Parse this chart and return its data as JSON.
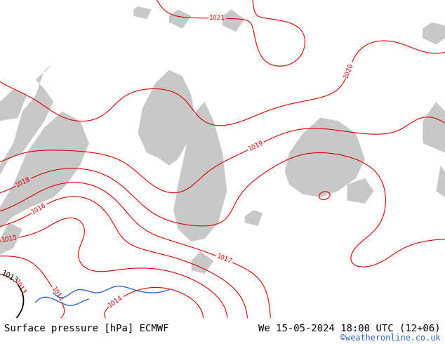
{
  "title_left": "Surface pressure [hPa] ECMWF",
  "title_right": "We 15-05-2024 18:00 UTC (12+06)",
  "credit": "©weatheronline.co.uk",
  "bg_color": "#aae05a",
  "gray_terrain": "#c8c8c8",
  "contour_color_red": "#dd0000",
  "contour_color_black": "#000000",
  "contour_color_blue": "#3366cc",
  "bottom_bar_color": "#ffffff",
  "bottom_text_color": "#000000",
  "credit_color": "#3366cc",
  "font_size_bottom": 10,
  "fig_width": 6.34,
  "fig_height": 4.9
}
